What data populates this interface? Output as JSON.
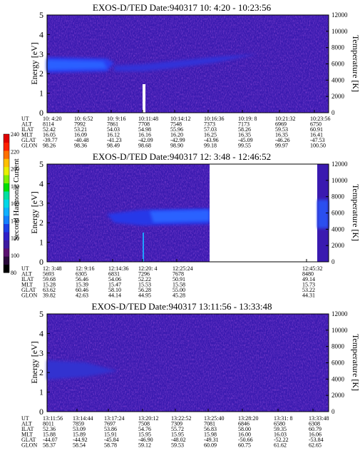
{
  "colorbar": {
    "label": "Second Harmonic Current",
    "ticks": [
      "80",
      "100",
      "120",
      "140",
      "160",
      "180",
      "200",
      "220",
      "240"
    ],
    "colors": [
      "#000000",
      "#2a0a3a",
      "#5a1070",
      "#3c1aa0",
      "#3020c8",
      "#1c40e8",
      "#1480ff",
      "#10b0ff",
      "#00d8e8",
      "#00e0a0",
      "#00e000",
      "#80f000",
      "#e8f000",
      "#ffc000",
      "#ff7000",
      "#ff2000",
      "#e00000"
    ]
  },
  "panels": [
    {
      "title": "EXOS-D/TED   Date:940317  10: 4:20 - 10:23:56",
      "energy_label": "Energy [eV]",
      "temp_label": "Temperature [K]",
      "energy_ticks": [
        "0",
        "1",
        "2",
        "3",
        "4",
        "5"
      ],
      "temp_ticks": [
        "0",
        "2000",
        "4000",
        "6000",
        "8000",
        "10000",
        "12000"
      ],
      "columns": [
        [
          "10: 4:20",
          "8114",
          "52.42",
          "16.05",
          "-39.77",
          "98.26"
        ],
        [
          "10: 6:52",
          "7992",
          "53.21",
          "16.09",
          "-40.48",
          "98.36"
        ],
        [
          "10: 9:16",
          "7861",
          "54.03",
          "16.12",
          "-41.23",
          "98.49"
        ],
        [
          "10:11:48",
          "7708",
          "54.98",
          "16.16",
          "-42.09",
          "98.68"
        ],
        [
          "10:14:12",
          "7548",
          "55.96",
          "16.20",
          "-42.99",
          "98.90"
        ],
        [
          "10:16:36",
          "7373",
          "57.03",
          "16.25",
          "-43.96",
          "99.18"
        ],
        [
          "10:19: 8",
          "7173",
          "58.26",
          "16.35",
          "-45.09",
          "99.55"
        ],
        [
          "10:21:32",
          "6969",
          "59.53",
          "16.35",
          "-46.26",
          "99.97"
        ],
        [
          "10:23:56",
          "6750",
          "60.91",
          "16.41",
          "-47.53",
          "100.50"
        ]
      ]
    },
    {
      "title": "EXOS-D/TED   Date:940317  12: 3:48 - 12:46:52",
      "energy_label": "Energy [eV]",
      "temp_label": "Temperature [K]",
      "energy_ticks": [
        "0",
        "1",
        "2",
        "3",
        "4",
        "5"
      ],
      "temp_ticks": [
        "0",
        "2000",
        "4000",
        "6000",
        "8000",
        "10000",
        "12000"
      ],
      "columns": [
        [
          "12: 3:48",
          "5693",
          "59.68",
          "15.28",
          "63.62",
          "39.82"
        ],
        [
          "12: 9:16",
          "6305",
          "56.46",
          "15.39",
          "60.46",
          "42.63"
        ],
        [
          "12:14:36",
          "6831",
          "54.06",
          "15.47",
          "58.10",
          "44.14"
        ],
        [
          "12:20: 4",
          "7296",
          "52.22",
          "15.53",
          "56.28",
          "44.95"
        ],
        [
          "12:25:24",
          "7678",
          "50.91",
          "15.58",
          "55.00",
          "45.28"
        ],
        [
          "12:45:32",
          "8480",
          "49.14",
          "15.73",
          "53.22",
          "44.31"
        ]
      ]
    },
    {
      "title": "EXOS-D/TED   Date:940317  13:11:56 - 13:33:48",
      "energy_label": "Energy [eV]",
      "temp_label": "Temperature [K]",
      "energy_ticks": [
        "0",
        "1",
        "2",
        "3",
        "4",
        "5"
      ],
      "temp_ticks": [
        "0",
        "2000",
        "4000",
        "6000",
        "8000",
        "10000",
        "12000"
      ],
      "columns": [
        [
          "13:11:56",
          "8011",
          "52.36",
          "15.88",
          "-44.07",
          "58.37"
        ],
        [
          "13:14:44",
          "7859",
          "53.09",
          "15.89",
          "-44.92",
          "58.54"
        ],
        [
          "13:17:24",
          "7697",
          "53.86",
          "15.91",
          "-45.84",
          "58.78"
        ],
        [
          "13:20:12",
          "7508",
          "54.76",
          "15.95",
          "-46.90",
          "59.12"
        ],
        [
          "13:22:52",
          "7309",
          "55.72",
          "15.95",
          "-48.02",
          "59.53"
        ],
        [
          "13:25:40",
          "7081",
          "56.83",
          "15.98",
          "-49.31",
          "60.09"
        ],
        [
          "13:28:20",
          "6846",
          "58.00",
          "16.00",
          "-50.66",
          "60.75"
        ],
        [
          "13:31: 8",
          "6580",
          "59.35",
          "16.03",
          "-52.22",
          "61.62"
        ],
        [
          "13:33:48",
          "6308",
          "60.79",
          "16.06",
          "-53.84",
          "62.65"
        ]
      ]
    }
  ],
  "row_labels": [
    "UT",
    "ALT",
    "ILAT",
    "MLT",
    "GLAT",
    "GLON"
  ],
  "chart_data": [
    {
      "type": "heatmap",
      "title": "EXOS-D/TED   Date:940317  10: 4:20 - 10:23:56",
      "ylabel": "Energy [eV]",
      "y2label": "Temperature [K]",
      "ylim": [
        0,
        5
      ],
      "y2lim": [
        0,
        12000
      ],
      "x": [
        "10: 4:20",
        "10: 6:52",
        "10: 9:16",
        "10:11:48",
        "10:14:12",
        "10:16:36",
        "10:19: 8",
        "10:21:32",
        "10:23:56"
      ]
    },
    {
      "type": "heatmap",
      "title": "EXOS-D/TED   Date:940317  12: 3:48 - 12:46:52",
      "ylabel": "Energy [eV]",
      "y2label": "Temperature [K]",
      "ylim": [
        0,
        5
      ],
      "y2lim": [
        0,
        12000
      ],
      "x": [
        "12: 3:48",
        "12: 9:16",
        "12:14:36",
        "12:20: 4",
        "12:25:24",
        "12:45:32"
      ]
    },
    {
      "type": "heatmap",
      "title": "EXOS-D/TED   Date:940317  13:11:56 - 13:33:48",
      "ylabel": "Energy [eV]",
      "y2label": "Temperature [K]",
      "ylim": [
        0,
        5
      ],
      "y2lim": [
        0,
        12000
      ],
      "x": [
        "13:11:56",
        "13:14:44",
        "13:17:24",
        "13:20:12",
        "13:22:52",
        "13:25:40",
        "13:28:20",
        "13:31: 8",
        "13:33:48"
      ]
    }
  ]
}
